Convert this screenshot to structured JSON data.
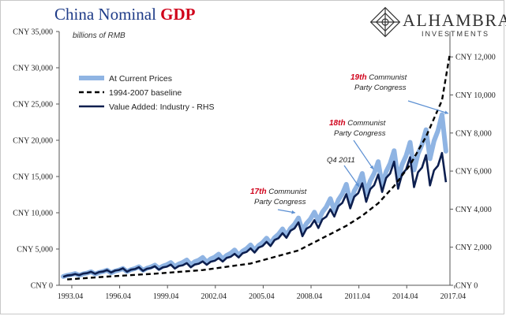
{
  "header": {
    "title_part1": "China Nominal ",
    "title_part2": "GDP",
    "units": "billions of RMB"
  },
  "brand": {
    "name": "ALHAMBRA",
    "sub": "INVESTMENTS",
    "logo_icon": "lattice-diamond-icon"
  },
  "colors": {
    "current_prices": "#8fb4e3",
    "baseline": "#000000",
    "industry": "#0d1f4f",
    "red": "#d0021b",
    "arrow": "#5b8fd2",
    "title_blue": "#1f3c88"
  },
  "chart_data": {
    "type": "line",
    "x_start": "1993.04",
    "x_end": "2017.04",
    "x_ticks": [
      "1993.04",
      "1996.04",
      "1999.04",
      "2002.04",
      "2005.04",
      "2008.04",
      "2011.04",
      "2014.04",
      "2017.04"
    ],
    "y_left": {
      "range": [
        0,
        35000
      ],
      "ticks": [
        "CNY 0",
        "CNY 5,000",
        "CNY 10,000",
        "CNY 15,000",
        "CNY 20,000",
        "CNY 25,000",
        "CNY 30,000",
        "CNY 35,000"
      ]
    },
    "y_right": {
      "range": [
        0,
        13333
      ],
      "ticks": [
        "CNY 0",
        "CNY 2,000",
        "CNY 4,000",
        "CNY 6,000",
        "CNY 8,000",
        "CNY 10,000",
        "CNY 12,000"
      ]
    },
    "series": [
      {
        "name": "At Current Prices",
        "axis": "left",
        "style": "thick-light",
        "annual_base": [
          1200,
          1400,
          1600,
          1800,
          2000,
          2200,
          2400,
          2700,
          3000,
          3300,
          3700,
          4200,
          4800,
          5600,
          6700,
          8000,
          8700,
          10300,
          12000,
          13300,
          14700,
          16000,
          17000,
          18500,
          20300,
          21500
        ],
        "quarter_factor": [
          0.86,
          0.98,
          1.05,
          1.16
        ]
      },
      {
        "name": "1994-2007 baseline",
        "axis": "left",
        "style": "dashed",
        "x": [
          1993.5,
          1996.0,
          1999.0,
          2002.0,
          2005.0,
          2008.0,
          2011.0,
          2012.0,
          2013.0,
          2014.0,
          2015.0,
          2016.0,
          2017.0,
          2017.5
        ],
        "values": [
          800,
          1200,
          1600,
          2100,
          3000,
          4800,
          8200,
          9600,
          11300,
          13700,
          16600,
          20500,
          25500,
          32000
        ]
      },
      {
        "name": "Value Added: Industry - RHS",
        "axis": "right",
        "style": "thick-dark",
        "annual_base": [
          400,
          520,
          620,
          700,
          780,
          830,
          880,
          950,
          1020,
          1100,
          1250,
          1450,
          1700,
          2000,
          2400,
          2900,
          3000,
          3500,
          4200,
          4700,
          5100,
          5700,
          5900,
          6000,
          6100,
          6300
        ],
        "quarter_factor": [
          0.86,
          0.99,
          1.03,
          1.14
        ]
      }
    ],
    "annotations": [
      {
        "label_red": "17th",
        "label_rest": " Communist",
        "line2": "Party Congress",
        "x": 2007.8,
        "y": 10000
      },
      {
        "label_red": "18th",
        "label_rest": " Communist",
        "line2": "Party Congress",
        "x": 2012.7,
        "y": 16000
      },
      {
        "label_red": "19th",
        "label_rest": " Communist",
        "line2": "Party Congress",
        "x": 2017.4,
        "y": 23700
      },
      {
        "label_red": "",
        "label_rest": "Q4 2011",
        "line2": "",
        "x": 2011.8,
        "y": 13600
      }
    ],
    "legend_position": "upper-left",
    "grid": false
  }
}
